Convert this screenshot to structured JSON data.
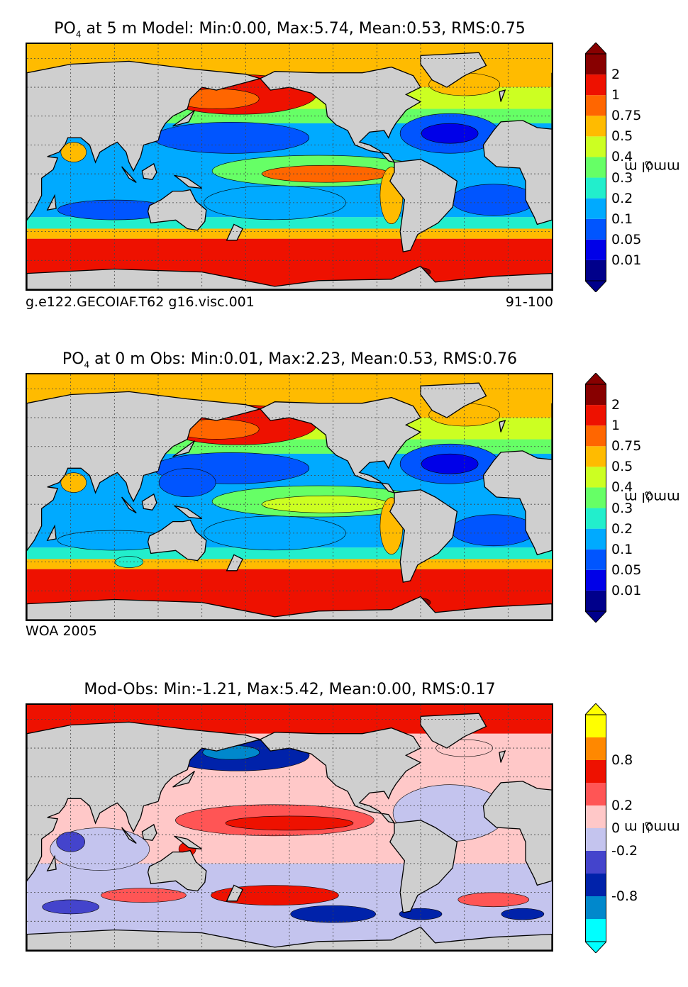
{
  "panels": [
    {
      "title_main": "PO",
      "title_sub": "4",
      "title_rest": "  at 5 m Model: Min:0.00, Max:5.74, Mean:0.53, RMS:0.75",
      "footer_left": "g.e122.GECOIAF.T62 g16.visc.001",
      "footer_right": "91-100",
      "colorbar_ticks": [
        "2",
        "1",
        "0.75",
        "0.5",
        "0.4",
        "0.3",
        "0.2",
        "0.1",
        "0.05",
        "0.01"
      ],
      "unit": "mmol m",
      "unit_sup": "−3",
      "field": "model"
    },
    {
      "title_main": "PO",
      "title_sub": "4",
      "title_rest": "  at 0 m Obs: Min:0.01, Max:2.23, Mean:0.53, RMS:0.76",
      "footer_left": "WOA 2005",
      "footer_right": "",
      "colorbar_ticks": [
        "2",
        "1",
        "0.75",
        "0.5",
        "0.4",
        "0.3",
        "0.2",
        "0.1",
        "0.05",
        "0.01"
      ],
      "unit": "mmol m",
      "unit_sup": "−3",
      "field": "obs"
    },
    {
      "title_main": "",
      "title_sub": "",
      "title_rest": "Mod-Obs: Min:-1.21, Max:5.42, Mean:0.00, RMS:0.17",
      "footer_left": "",
      "footer_right": "",
      "colorbar_ticks": [
        "0.8",
        "0.2",
        "0",
        "-0.2",
        "-0.8"
      ],
      "unit": "mmol m",
      "unit_sup": "−3",
      "field": "diff"
    }
  ],
  "colors": {
    "land": "#cfcfcf",
    "seq": [
      "#00008b",
      "#0000e8",
      "#0055ff",
      "#00aaff",
      "#22eecc",
      "#66ff66",
      "#ccff22",
      "#ffbb00",
      "#ff6600",
      "#ee1100",
      "#880000"
    ],
    "diff": [
      "#00ffff",
      "#0088cc",
      "#0022aa",
      "#4444cc",
      "#c4c4ee",
      "#ffc8c8",
      "#ff5555",
      "#ee1100",
      "#ff8800",
      "#ffff00"
    ]
  }
}
